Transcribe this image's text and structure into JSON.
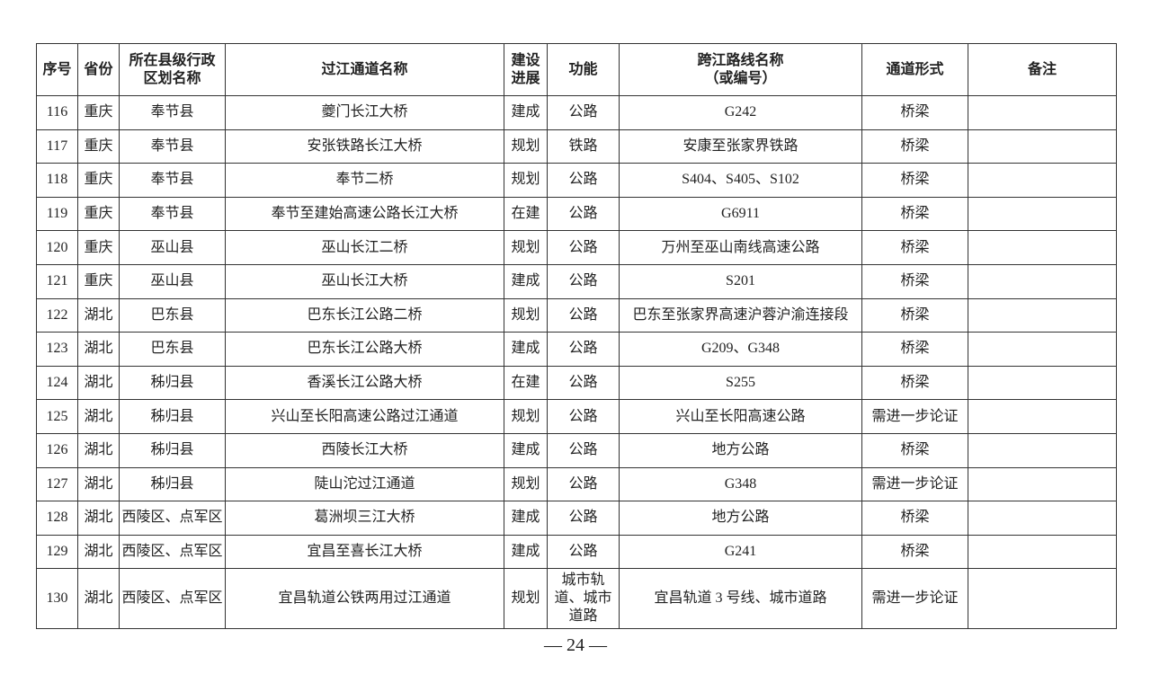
{
  "headers": [
    "序号",
    "省份",
    "所在县级行政\n区划名称",
    "过江通道名称",
    "建设\n进展",
    "功能",
    "跨江路线名称\n（或编号）",
    "通道形式",
    "备注"
  ],
  "rows": [
    [
      "116",
      "重庆",
      "奉节县",
      "夔门长江大桥",
      "建成",
      "公路",
      "G242",
      "桥梁",
      ""
    ],
    [
      "117",
      "重庆",
      "奉节县",
      "安张铁路长江大桥",
      "规划",
      "铁路",
      "安康至张家界铁路",
      "桥梁",
      ""
    ],
    [
      "118",
      "重庆",
      "奉节县",
      "奉节二桥",
      "规划",
      "公路",
      "S404、S405、S102",
      "桥梁",
      ""
    ],
    [
      "119",
      "重庆",
      "奉节县",
      "奉节至建始高速公路长江大桥",
      "在建",
      "公路",
      "G6911",
      "桥梁",
      ""
    ],
    [
      "120",
      "重庆",
      "巫山县",
      "巫山长江二桥",
      "规划",
      "公路",
      "万州至巫山南线高速公路",
      "桥梁",
      ""
    ],
    [
      "121",
      "重庆",
      "巫山县",
      "巫山长江大桥",
      "建成",
      "公路",
      "S201",
      "桥梁",
      ""
    ],
    [
      "122",
      "湖北",
      "巴东县",
      "巴东长江公路二桥",
      "规划",
      "公路",
      "巴东至张家界高速沪蓉沪渝连接段",
      "桥梁",
      ""
    ],
    [
      "123",
      "湖北",
      "巴东县",
      "巴东长江公路大桥",
      "建成",
      "公路",
      "G209、G348",
      "桥梁",
      ""
    ],
    [
      "124",
      "湖北",
      "秭归县",
      "香溪长江公路大桥",
      "在建",
      "公路",
      "S255",
      "桥梁",
      ""
    ],
    [
      "125",
      "湖北",
      "秭归县",
      "兴山至长阳高速公路过江通道",
      "规划",
      "公路",
      "兴山至长阳高速公路",
      "需进一步论证",
      ""
    ],
    [
      "126",
      "湖北",
      "秭归县",
      "西陵长江大桥",
      "建成",
      "公路",
      "地方公路",
      "桥梁",
      ""
    ],
    [
      "127",
      "湖北",
      "秭归县",
      "陡山沱过江通道",
      "规划",
      "公路",
      "G348",
      "需进一步论证",
      ""
    ],
    [
      "128",
      "湖北",
      "西陵区、点军区",
      "葛洲坝三江大桥",
      "建成",
      "公路",
      "地方公路",
      "桥梁",
      ""
    ],
    [
      "129",
      "湖北",
      "西陵区、点军区",
      "宜昌至喜长江大桥",
      "建成",
      "公路",
      "G241",
      "桥梁",
      ""
    ],
    [
      "130",
      "湖北",
      "西陵区、点军区",
      "宜昌轨道公铁两用过江通道",
      "规划",
      "城市轨\n道、城市\n道路",
      "宜昌轨道 3 号线、城市道路",
      "需进一步论证",
      ""
    ]
  ],
  "page_number": "— 24 —"
}
